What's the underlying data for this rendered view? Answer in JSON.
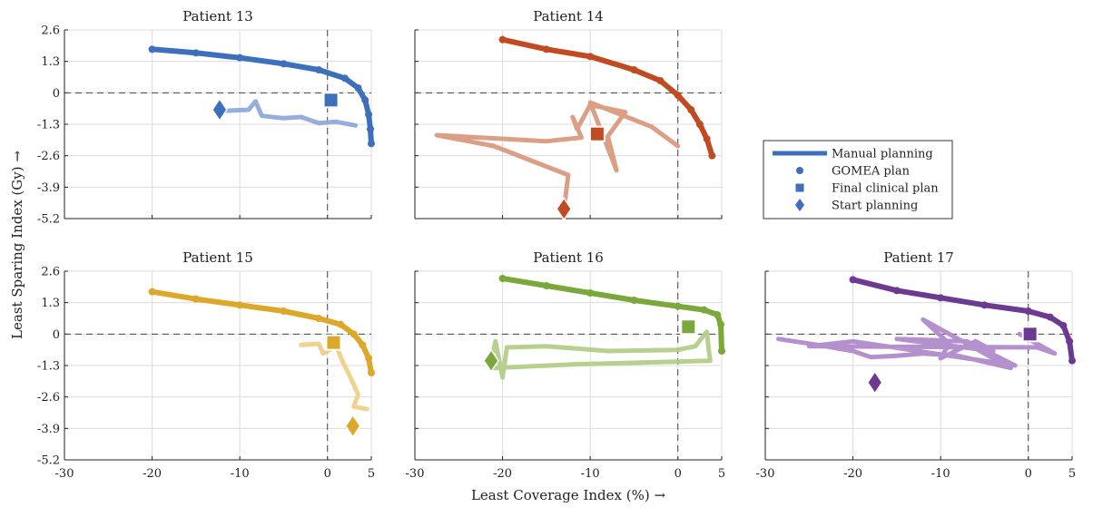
{
  "chart_data": {
    "type": "scatter",
    "xlabel": "Least Coverage Index (%) →",
    "ylabel": "Least Sparing Index (Gy) →",
    "xlim": [
      -30,
      5
    ],
    "ylim": [
      -5.2,
      2.6
    ],
    "xticks": [
      -30,
      -20,
      -10,
      0,
      5
    ],
    "yticks": [
      2.6,
      1.3,
      0,
      -1.3,
      -2.6,
      -3.9,
      -5.2
    ],
    "grid": true,
    "legend": {
      "placement": "right",
      "entries": [
        "Manual planning",
        "GOMEA plan",
        "Final clinical plan",
        "Start planning"
      ]
    },
    "panels": [
      {
        "title": "Patient 13",
        "color": "#3d6fbb",
        "light": "#8faad9",
        "gomea_front": [
          [
            -20,
            1.8
          ],
          [
            -15,
            1.65
          ],
          [
            -10,
            1.45
          ],
          [
            -5,
            1.2
          ],
          [
            -1,
            0.95
          ],
          [
            2,
            0.6
          ],
          [
            3.5,
            0.2
          ],
          [
            4.3,
            -0.3
          ],
          [
            4.7,
            -0.9
          ],
          [
            4.9,
            -1.5
          ],
          [
            5,
            -2.1
          ]
        ],
        "manual_planning": [
          [
            -12,
            -0.75
          ],
          [
            -9,
            -0.7
          ],
          [
            -8.2,
            -0.35
          ],
          [
            -7.5,
            -0.95
          ],
          [
            -5,
            -1.05
          ],
          [
            -3,
            -1.0
          ],
          [
            -1,
            -1.25
          ],
          [
            1,
            -1.2
          ],
          [
            3.2,
            -1.35
          ]
        ],
        "final_clinical_plan": [
          0.4,
          -0.3
        ],
        "start_planning": [
          -12.3,
          -0.7
        ]
      },
      {
        "title": "Patient 14",
        "color": "#c04a22",
        "light": "#d99a80",
        "gomea_front": [
          [
            -20,
            2.2
          ],
          [
            -15,
            1.8
          ],
          [
            -10,
            1.5
          ],
          [
            -5,
            0.95
          ],
          [
            -2,
            0.5
          ],
          [
            0,
            -0.1
          ],
          [
            1.5,
            -0.7
          ],
          [
            2.5,
            -1.3
          ],
          [
            3.3,
            -1.9
          ],
          [
            3.9,
            -2.6
          ]
        ],
        "manual_planning": [
          [
            -13,
            -4.8
          ],
          [
            -12.5,
            -3.4
          ],
          [
            -21,
            -2.2
          ],
          [
            -27.5,
            -1.75
          ],
          [
            -15,
            -2.0
          ],
          [
            -11,
            -1.85
          ],
          [
            -12,
            -1.0
          ],
          [
            -11.5,
            -1.5
          ],
          [
            -10,
            -0.5
          ],
          [
            -6,
            -0.8
          ],
          [
            -8,
            -1.8
          ],
          [
            -7,
            -3.2
          ],
          [
            -10,
            -0.4
          ],
          [
            -3,
            -1.4
          ],
          [
            0,
            -2.2
          ]
        ],
        "final_clinical_plan": [
          -9.2,
          -1.7
        ],
        "start_planning": [
          -13,
          -4.8
        ]
      },
      {
        "title": "Patient 15",
        "color": "#dba82a",
        "light": "#efd08a",
        "gomea_front": [
          [
            -20,
            1.75
          ],
          [
            -15,
            1.45
          ],
          [
            -10,
            1.2
          ],
          [
            -5,
            0.95
          ],
          [
            -1,
            0.65
          ],
          [
            1.5,
            0.4
          ],
          [
            3,
            0.0
          ],
          [
            4,
            -0.45
          ],
          [
            4.7,
            -1.0
          ],
          [
            5,
            -1.6
          ]
        ],
        "manual_planning": [
          [
            -3,
            -0.45
          ],
          [
            -1,
            -0.4
          ],
          [
            -0.5,
            -0.8
          ],
          [
            1,
            -0.5
          ],
          [
            1.8,
            -1.2
          ],
          [
            2.5,
            -1.7
          ],
          [
            3.5,
            -2.5
          ],
          [
            3,
            -3.0
          ],
          [
            4.5,
            -3.1
          ]
        ],
        "final_clinical_plan": [
          0.7,
          -0.35
        ],
        "start_planning": [
          2.9,
          -3.8
        ]
      },
      {
        "title": "Patient 16",
        "color": "#7aa83a",
        "light": "#b3ce8a",
        "gomea_front": [
          [
            -20,
            2.3
          ],
          [
            -15,
            2.0
          ],
          [
            -10,
            1.7
          ],
          [
            -5,
            1.4
          ],
          [
            0,
            1.15
          ],
          [
            3,
            1.0
          ],
          [
            4.5,
            0.8
          ],
          [
            4.9,
            0.4
          ],
          [
            5,
            -0.7
          ]
        ],
        "manual_planning": [
          [
            -21.3,
            -1.1
          ],
          [
            -20.8,
            -0.3
          ],
          [
            -20,
            -1.8
          ],
          [
            -19.5,
            -0.55
          ],
          [
            -15,
            -0.5
          ],
          [
            -8,
            -0.7
          ],
          [
            0,
            -0.65
          ],
          [
            2,
            -0.5
          ],
          [
            3.3,
            0.1
          ],
          [
            3.5,
            -0.6
          ],
          [
            3.7,
            -1.1
          ],
          [
            -12,
            -1.25
          ],
          [
            -21,
            -1.4
          ]
        ],
        "final_clinical_plan": [
          1.2,
          0.3
        ],
        "start_planning": [
          -21.3,
          -1.1
        ]
      },
      {
        "title": "Patient 17",
        "color": "#6d3a92",
        "light": "#b08bc9",
        "gomea_front": [
          [
            -20,
            2.25
          ],
          [
            -15,
            1.8
          ],
          [
            -10,
            1.5
          ],
          [
            -5,
            1.2
          ],
          [
            0,
            0.95
          ],
          [
            2.5,
            0.7
          ],
          [
            4,
            0.35
          ],
          [
            4.7,
            -0.3
          ],
          [
            5,
            -1.1
          ]
        ],
        "manual_planning": [
          [
            -28.5,
            -0.2
          ],
          [
            -24,
            -0.45
          ],
          [
            -20,
            -0.7
          ],
          [
            -18,
            -0.95
          ],
          [
            -15,
            -0.9
          ],
          [
            -12,
            -0.8
          ],
          [
            -8,
            -0.9
          ],
          [
            -2,
            -1.4
          ],
          [
            -12,
            0.6
          ],
          [
            -9,
            -0.4
          ],
          [
            -10,
            -1.0
          ],
          [
            -6,
            -0.3
          ],
          [
            -4,
            -0.7
          ],
          [
            -15,
            -0.2
          ],
          [
            -7,
            -0.3
          ],
          [
            -1.5,
            -1.3
          ],
          [
            -20,
            -0.3
          ],
          [
            -25,
            -0.5
          ],
          [
            1,
            -0.55
          ],
          [
            3,
            -0.8
          ],
          [
            -1,
            0.0
          ]
        ],
        "final_clinical_plan": [
          0.2,
          0.0
        ],
        "start_planning": [
          -17.5,
          -2.0
        ]
      }
    ]
  }
}
